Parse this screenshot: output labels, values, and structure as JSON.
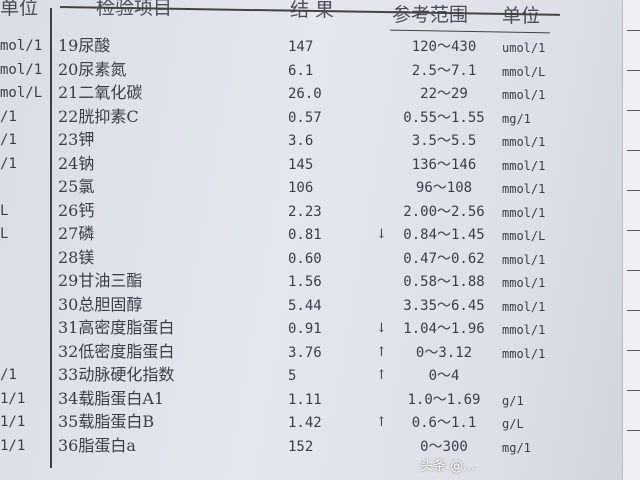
{
  "header": {
    "left_unit": "单位",
    "item": "检验项目",
    "result": "结 果",
    "reference": "参考范围",
    "unit": "单位"
  },
  "rows": [
    {
      "left_unit": "mol/1",
      "name": "19尿酸",
      "result": "147",
      "flag": "",
      "range": "120～430",
      "unit": "umol/1"
    },
    {
      "left_unit": "mol/1",
      "name": "20尿素氮",
      "result": "6.1",
      "flag": "",
      "range": "2.5～7.1",
      "unit": "mmol/L"
    },
    {
      "left_unit": "mol/L",
      "name": "21二氧化碳",
      "result": "26.0",
      "flag": "",
      "range": "22～29",
      "unit": "mmol/1"
    },
    {
      "left_unit": "/1",
      "name": "22胱抑素C",
      "result": "0.57",
      "flag": "",
      "range": "0.55～1.55",
      "unit": "mg/1"
    },
    {
      "left_unit": "/1",
      "name": "23钾",
      "result": "3.6",
      "flag": "",
      "range": "3.5～5.5",
      "unit": "mmol/1"
    },
    {
      "left_unit": "/1",
      "name": "24钠",
      "result": "145",
      "flag": "",
      "range": "136～146",
      "unit": "mmol/1"
    },
    {
      "left_unit": "",
      "name": "25氯",
      "result": "106",
      "flag": "",
      "range": "96～108",
      "unit": "mmol/1"
    },
    {
      "left_unit": "L",
      "name": "26钙",
      "result": "2.23",
      "flag": "",
      "range": "2.00～2.56",
      "unit": "mmol/1"
    },
    {
      "left_unit": "L",
      "name": "27磷",
      "result": "0.81",
      "flag": "↓",
      "range": "0.84～1.45",
      "unit": "mmol/L"
    },
    {
      "left_unit": "",
      "name": "28镁",
      "result": "0.60",
      "flag": "",
      "range": "0.47～0.62",
      "unit": "mmol/1"
    },
    {
      "left_unit": "",
      "name": "29甘油三酯",
      "result": "1.56",
      "flag": "",
      "range": "0.58～1.88",
      "unit": "mmol/1"
    },
    {
      "left_unit": "",
      "name": "30总胆固醇",
      "result": "5.44",
      "flag": "",
      "range": "3.35～6.45",
      "unit": "mmol/1"
    },
    {
      "left_unit": "",
      "name": "31高密度脂蛋白",
      "result": "0.91",
      "flag": "↓",
      "range": "1.04～1.96",
      "unit": "mmol/1"
    },
    {
      "left_unit": "",
      "name": "32低密度脂蛋白",
      "result": "3.76",
      "flag": "↑",
      "range": "0～3.12",
      "unit": "mmol/1"
    },
    {
      "left_unit": "/1",
      "name": "33动脉硬化指数",
      "result": "5",
      "flag": "↑",
      "range": "0～4",
      "unit": ""
    },
    {
      "left_unit": "1/1",
      "name": "34载脂蛋白A1",
      "result": "1.11",
      "flag": "",
      "range": "1.0～1.69",
      "unit": "g/1"
    },
    {
      "left_unit": "1/1",
      "name": "35载脂蛋白B",
      "result": "1.42",
      "flag": "↑",
      "range": "0.6～1.1",
      "unit": "g/L"
    },
    {
      "left_unit": "1/1",
      "name": "36脂蛋白a",
      "result": "152",
      "flag": "",
      "range": "0～300",
      "unit": "mg/1"
    }
  ],
  "watermark": "头条 @...",
  "colors": {
    "paper": "#e0e3ea",
    "ink": "#3b3e4a"
  }
}
